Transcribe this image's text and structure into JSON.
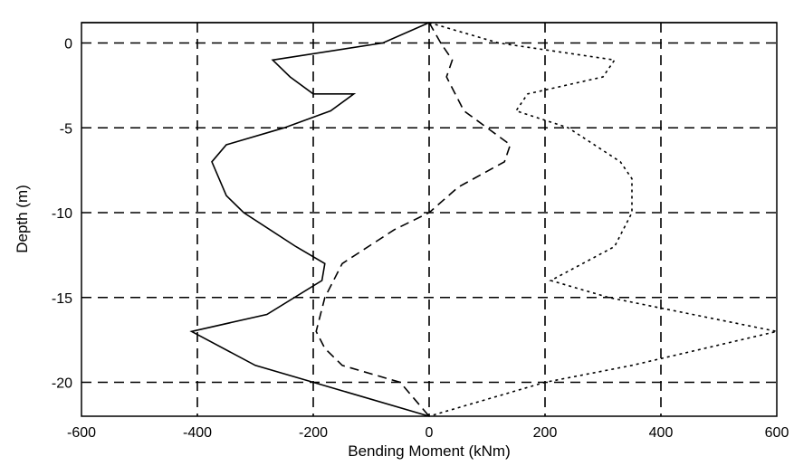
{
  "chart_data": {
    "type": "line",
    "title": "",
    "xlabel": "Bending Moment (kNm)",
    "ylabel": "Depth (m)",
    "xlim": [
      -600,
      600
    ],
    "ylim": [
      -22,
      1.2
    ],
    "x_ticks": [
      -600,
      -400,
      -200,
      0,
      200,
      400,
      600
    ],
    "y_ticks": [
      0,
      -5,
      -10,
      -15,
      -20
    ],
    "x_tick_labels": [
      "-600",
      "-400",
      "-200",
      "0",
      "200",
      "400",
      "600"
    ],
    "y_tick_labels": [
      "0",
      "-5",
      "-10",
      "-15",
      "-20"
    ],
    "grid": true,
    "series": [
      {
        "style": "solid",
        "points": [
          [
            0,
            1.2
          ],
          [
            -80,
            0
          ],
          [
            -270,
            -1
          ],
          [
            -240,
            -2
          ],
          [
            -200,
            -3
          ],
          [
            -130,
            -3
          ],
          [
            -170,
            -4
          ],
          [
            -250,
            -5
          ],
          [
            -350,
            -6
          ],
          [
            -375,
            -7
          ],
          [
            -350,
            -9
          ],
          [
            -320,
            -10
          ],
          [
            -230,
            -12
          ],
          [
            -180,
            -13
          ],
          [
            -185,
            -14
          ],
          [
            -280,
            -16
          ],
          [
            -410,
            -17
          ],
          [
            -300,
            -19
          ],
          [
            -200,
            -20
          ],
          [
            0,
            -22
          ]
        ]
      },
      {
        "style": "dashed",
        "points": [
          [
            0,
            1.2
          ],
          [
            20,
            0
          ],
          [
            40,
            -1
          ],
          [
            30,
            -2
          ],
          [
            60,
            -4
          ],
          [
            140,
            -6
          ],
          [
            130,
            -7
          ],
          [
            50,
            -8.5
          ],
          [
            0,
            -10
          ],
          [
            -60,
            -11
          ],
          [
            -150,
            -13
          ],
          [
            -180,
            -15
          ],
          [
            -195,
            -17
          ],
          [
            -180,
            -18
          ],
          [
            -150,
            -19
          ],
          [
            -50,
            -20
          ],
          [
            0,
            -22
          ]
        ]
      },
      {
        "style": "dotted",
        "points": [
          [
            0,
            1.2
          ],
          [
            120,
            0
          ],
          [
            320,
            -1
          ],
          [
            300,
            -2
          ],
          [
            170,
            -3
          ],
          [
            150,
            -4
          ],
          [
            240,
            -5
          ],
          [
            330,
            -7
          ],
          [
            350,
            -8
          ],
          [
            350,
            -10
          ],
          [
            320,
            -12
          ],
          [
            210,
            -14
          ],
          [
            310,
            -15
          ],
          [
            600,
            -17
          ],
          [
            350,
            -19
          ],
          [
            200,
            -20
          ],
          [
            0,
            -22
          ]
        ]
      }
    ]
  }
}
